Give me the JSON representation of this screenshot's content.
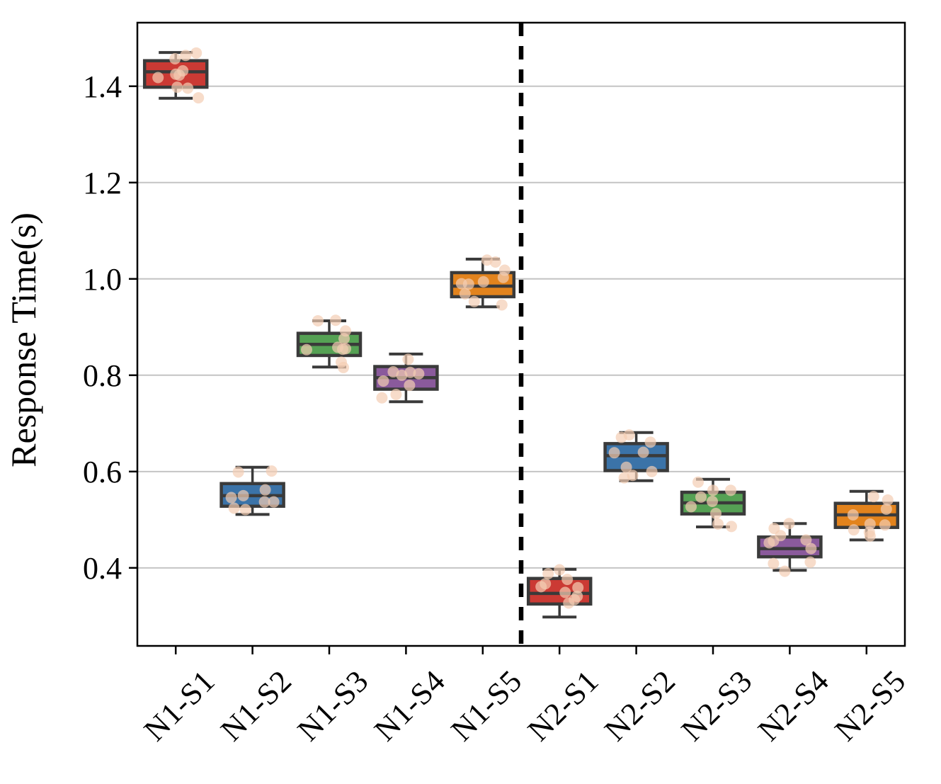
{
  "figure": {
    "ylabel": "Response Time(s)",
    "background": "#ffffff"
  },
  "chart_data": {
    "type": "boxplot",
    "title": "",
    "xlabel": "",
    "ylabel": "Response Time(s)",
    "categories": [
      "N1-S1",
      "N1-S2",
      "N1-S3",
      "N1-S4",
      "N1-S5",
      "N2-S1",
      "N2-S2",
      "N2-S3",
      "N2-S4",
      "N2-S5"
    ],
    "ylim": [
      0.238,
      1.532
    ],
    "yticks": [
      0.4,
      0.6,
      0.8,
      1.0,
      1.2,
      1.4
    ],
    "grid": "horizontal-gridlines-on",
    "legend": "none",
    "divider_between_groups_x": 4.5,
    "series": [
      {
        "label": "N1-S1",
        "color": "#cb3a34",
        "whisker_low": 1.375,
        "q1": 1.398,
        "median": 1.43,
        "q3": 1.453,
        "whisker_high": 1.47,
        "points": [
          [
            -1,
            1.457
          ],
          [
            14,
            1.464
          ],
          [
            29,
            1.469
          ],
          [
            0,
            1.425
          ],
          [
            10,
            1.432
          ],
          [
            -25,
            1.418
          ],
          [
            5,
            1.423
          ],
          [
            2,
            1.398
          ],
          [
            17,
            1.396
          ],
          [
            32,
            1.376
          ]
        ]
      },
      {
        "label": "N1-S2",
        "color": "#3b73a8",
        "whisker_low": 0.511,
        "q1": 0.528,
        "median": 0.55,
        "q3": 0.575,
        "whisker_high": 0.609,
        "points": [
          [
            -20,
            0.599
          ],
          [
            27,
            0.601
          ],
          [
            18,
            0.562
          ],
          [
            -30,
            0.546
          ],
          [
            -13,
            0.55
          ],
          [
            17,
            0.537
          ],
          [
            30,
            0.537
          ],
          [
            -26,
            0.524
          ],
          [
            -10,
            0.521
          ]
        ]
      },
      {
        "label": "N1-S3",
        "color": "#55a154",
        "whisker_low": 0.817,
        "q1": 0.841,
        "median": 0.864,
        "q3": 0.887,
        "whisker_high": 0.913,
        "points": [
          [
            -16,
            0.913
          ],
          [
            9,
            0.914
          ],
          [
            23,
            0.892
          ],
          [
            21,
            0.876
          ],
          [
            19,
            0.854
          ],
          [
            12,
            0.858
          ],
          [
            -32,
            0.853
          ],
          [
            23,
            0.855
          ],
          [
            17,
            0.827
          ],
          [
            20,
            0.816
          ]
        ]
      },
      {
        "label": "N1-S4",
        "color": "#8a5a9c",
        "whisker_low": 0.745,
        "q1": 0.771,
        "median": 0.795,
        "q3": 0.818,
        "whisker_high": 0.844,
        "points": [
          [
            3,
            0.833
          ],
          [
            -18,
            0.807
          ],
          [
            -6,
            0.8
          ],
          [
            6,
            0.806
          ],
          [
            18,
            0.803
          ],
          [
            -32,
            0.788
          ],
          [
            5,
            0.779
          ],
          [
            -34,
            0.753
          ],
          [
            -14,
            0.76
          ]
        ]
      },
      {
        "label": "N1-S5",
        "color": "#e2831d",
        "whisker_low": 0.942,
        "q1": 0.963,
        "median": 0.985,
        "q3": 1.013,
        "whisker_high": 1.041,
        "points": [
          [
            6,
            1.039
          ],
          [
            18,
            1.035
          ],
          [
            31,
            1.018
          ],
          [
            29,
            1.003
          ],
          [
            -30,
            0.99
          ],
          [
            -20,
            0.989
          ],
          [
            1,
            0.994
          ],
          [
            -25,
            0.969
          ],
          [
            -12,
            0.953
          ],
          [
            27,
            0.946
          ]
        ]
      },
      {
        "label": "N2-S1",
        "color": "#cb3a34",
        "whisker_low": 0.298,
        "q1": 0.325,
        "median": 0.347,
        "q3": 0.378,
        "whisker_high": 0.397,
        "points": [
          [
            0,
            0.396
          ],
          [
            -16,
            0.388
          ],
          [
            11,
            0.376
          ],
          [
            -20,
            0.367
          ],
          [
            -26,
            0.361
          ],
          [
            26,
            0.359
          ],
          [
            8,
            0.349
          ],
          [
            25,
            0.341
          ],
          [
            21,
            0.334
          ],
          [
            13,
            0.327
          ]
        ]
      },
      {
        "label": "N2-S2",
        "color": "#3b73a8",
        "whisker_low": 0.581,
        "q1": 0.602,
        "median": 0.633,
        "q3": 0.658,
        "whisker_high": 0.681,
        "points": [
          [
            -21,
            0.671
          ],
          [
            -10,
            0.676
          ],
          [
            20,
            0.661
          ],
          [
            -31,
            0.639
          ],
          [
            10,
            0.64
          ],
          [
            -14,
            0.609
          ],
          [
            22,
            0.6
          ],
          [
            -17,
            0.587
          ],
          [
            -5,
            0.592
          ]
        ]
      },
      {
        "label": "N2-S3",
        "color": "#55a154",
        "whisker_low": 0.485,
        "q1": 0.512,
        "median": 0.535,
        "q3": 0.557,
        "whisker_high": 0.584,
        "points": [
          [
            -21,
            0.578
          ],
          [
            0,
            0.561
          ],
          [
            25,
            0.561
          ],
          [
            -17,
            0.547
          ],
          [
            -1,
            0.538
          ],
          [
            -31,
            0.527
          ],
          [
            4,
            0.513
          ],
          [
            7,
            0.491
          ],
          [
            26,
            0.486
          ]
        ]
      },
      {
        "label": "N2-S4",
        "color": "#8a5a9c",
        "whisker_low": 0.395,
        "q1": 0.423,
        "median": 0.44,
        "q3": 0.464,
        "whisker_high": 0.492,
        "points": [
          [
            -1,
            0.492
          ],
          [
            -22,
            0.482
          ],
          [
            -13,
            0.467
          ],
          [
            -29,
            0.452
          ],
          [
            -23,
            0.456
          ],
          [
            23,
            0.458
          ],
          [
            30,
            0.44
          ],
          [
            -23,
            0.409
          ],
          [
            -7,
            0.393
          ],
          [
            29,
            0.412
          ]
        ]
      },
      {
        "label": "N2-S5",
        "color": "#e2831d",
        "whisker_low": 0.458,
        "q1": 0.484,
        "median": 0.51,
        "q3": 0.534,
        "whisker_high": 0.559,
        "points": [
          [
            10,
            0.548
          ],
          [
            30,
            0.541
          ],
          [
            28,
            0.522
          ],
          [
            -19,
            0.51
          ],
          [
            5,
            0.491
          ],
          [
            26,
            0.489
          ],
          [
            4,
            0.474
          ],
          [
            5,
            0.466
          ],
          [
            -18,
            0.479
          ]
        ]
      }
    ]
  },
  "style_colors": {
    "box_edge": "#3a3a3a",
    "gridline": "#c4c4c4",
    "spine": "#000000",
    "divider": "#000000",
    "strip_point_fill": "rgba(244,205,180,0.70)"
  }
}
